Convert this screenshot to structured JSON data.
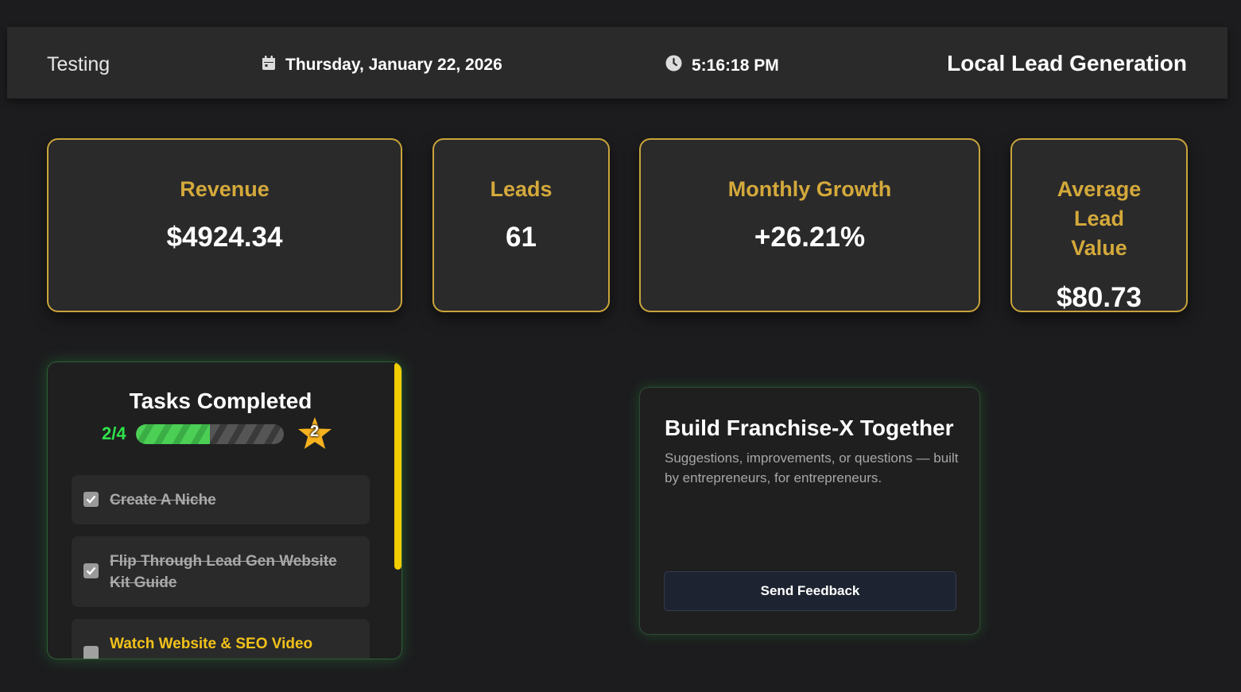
{
  "header": {
    "account_name": "Testing",
    "date": "Thursday, January 22, 2026",
    "time": "5:16:18 PM",
    "app_title": "Local Lead Generation",
    "icons": [
      "calendar-icon",
      "clock-icon"
    ]
  },
  "stats": [
    {
      "label": "Revenue",
      "value": "$4924.34"
    },
    {
      "label": "Leads",
      "value": "61"
    },
    {
      "label": "Monthly Growth",
      "value": "+26.21%"
    },
    {
      "label": "Average Lead Value",
      "value": "$80.73"
    }
  ],
  "tasks": {
    "title": "Tasks Completed",
    "progress_text": "2/4",
    "progress_fraction": 0.5,
    "star_count": "2",
    "items": [
      {
        "label": "Create A Niche",
        "done": true
      },
      {
        "label": "Flip Through Lead Gen Website Kit Guide",
        "done": true
      },
      {
        "label": "Watch Website & SEO Video",
        "done": false
      }
    ]
  },
  "feedback": {
    "title": "Build Franchise-X Together",
    "description": "Suggestions, improvements, or questions — built by entrepreneurs, for entrepreneurs.",
    "button_label": "Send Feedback"
  },
  "colors": {
    "accent_gold": "#d4a93b",
    "progress_green": "#2ee34a",
    "scroll_yellow": "#f2cd00",
    "task_todo": "#f2c21a"
  }
}
